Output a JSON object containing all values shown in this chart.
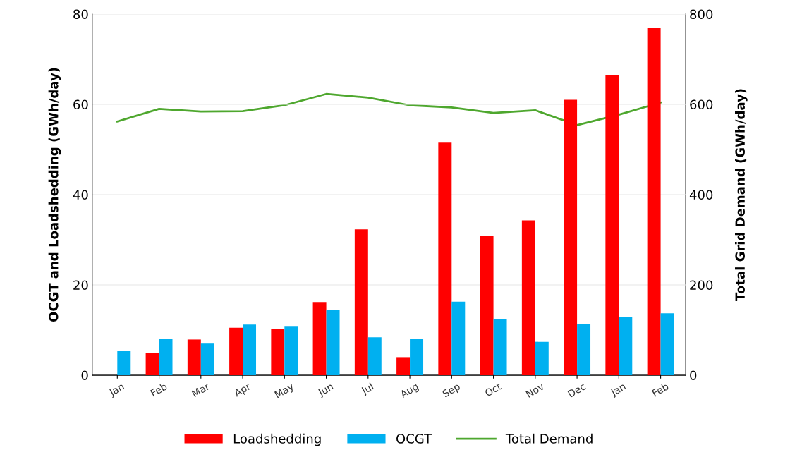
{
  "chart_data": {
    "type": "bar",
    "ylabel": "OCGT and Loadshedding (GWh/day)",
    "y2label": "Total Grid Demand (GWh/day)",
    "categories": [
      "Jan",
      "Feb",
      "Mar",
      "Apr",
      "May",
      "Jun",
      "Jul",
      "Aug",
      "Sep",
      "Oct",
      "Nov",
      "Dec",
      "Jan",
      "Feb"
    ],
    "series": [
      {
        "name": "Loadshedding",
        "color": "#ff0000",
        "values": [
          null,
          4.9,
          7.9,
          10.5,
          10.3,
          16.2,
          32.3,
          4.0,
          51.5,
          30.8,
          34.3,
          61.0,
          66.5,
          77.0
        ]
      },
      {
        "name": "OCGT",
        "color": "#00b0f0",
        "values": [
          5.3,
          8.0,
          7.0,
          11.2,
          10.9,
          14.4,
          8.4,
          8.1,
          16.3,
          12.4,
          7.4,
          11.3,
          12.8,
          13.7
        ]
      },
      {
        "name": "Total Demand",
        "type": "line",
        "axis": "y2",
        "color": "#4ea72e",
        "values": [
          562,
          590,
          584,
          585,
          598,
          623,
          615,
          598,
          593,
          581,
          587,
          554,
          577,
          604
        ]
      }
    ],
    "ylim": [
      0,
      80
    ],
    "yticks": [
      0,
      20,
      40,
      60,
      80
    ],
    "y2lim": [
      0,
      800
    ],
    "y2ticks": [
      0,
      200,
      400,
      600,
      800
    ],
    "grid": "y",
    "legend": "bottom",
    "marker": "none",
    "line_style": "solid"
  }
}
